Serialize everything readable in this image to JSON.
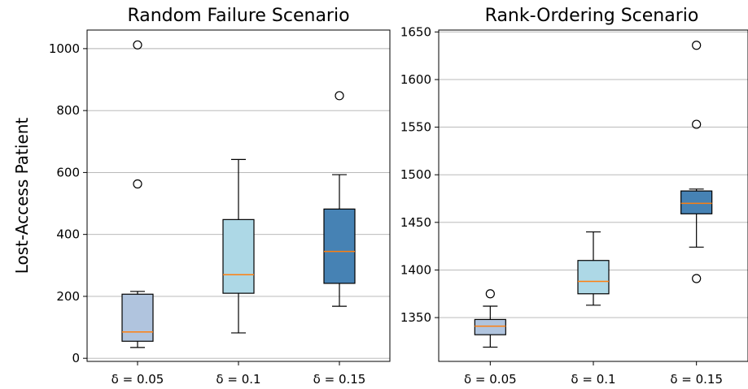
{
  "chart_data": [
    {
      "type": "box",
      "title": "Random Failure Scenario",
      "ylabel": "Lost-Access Patient",
      "xlabel": "",
      "categories": [
        "δ = 0.05",
        "δ = 0.1",
        "δ = 0.15"
      ],
      "ylim": [
        -10,
        1060
      ],
      "yticks": [
        0,
        200,
        400,
        600,
        800,
        1000
      ],
      "grid": "y",
      "boxes": [
        {
          "category": "δ = 0.05",
          "whisker_low": 35,
          "q1": 55,
          "median": 85,
          "q3": 207,
          "whisker_high": 216,
          "outliers": [
            563,
            1012
          ],
          "color": "#b0c4de"
        },
        {
          "category": "δ = 0.1",
          "whisker_low": 82,
          "q1": 210,
          "median": 270,
          "q3": 448,
          "whisker_high": 642,
          "outliers": [],
          "color": "#add8e6"
        },
        {
          "category": "δ = 0.15",
          "whisker_low": 168,
          "q1": 242,
          "median": 345,
          "q3": 482,
          "whisker_high": 593,
          "outliers": [
            848
          ],
          "color": "#4682b4"
        }
      ]
    },
    {
      "type": "box",
      "title": "Rank-Ordering Scenario",
      "ylabel": "",
      "xlabel": "",
      "categories": [
        "δ = 0.05",
        "δ = 0.1",
        "δ = 0.15"
      ],
      "ylim": [
        1304,
        1652
      ],
      "yticks": [
        1350,
        1400,
        1450,
        1500,
        1550,
        1600,
        1650
      ],
      "grid": "y",
      "boxes": [
        {
          "category": "δ = 0.05",
          "whisker_low": 1319,
          "q1": 1332,
          "median": 1341,
          "q3": 1348,
          "whisker_high": 1362,
          "outliers": [
            1375
          ],
          "color": "#b0c4de"
        },
        {
          "category": "δ = 0.1",
          "whisker_low": 1363,
          "q1": 1375,
          "median": 1388,
          "q3": 1410,
          "whisker_high": 1440,
          "outliers": [],
          "color": "#add8e6"
        },
        {
          "category": "δ = 0.15",
          "whisker_low": 1424,
          "q1": 1459,
          "median": 1470,
          "q3": 1483,
          "whisker_high": 1485,
          "outliers": [
            1391,
            1553,
            1636
          ],
          "color": "#4682b4"
        }
      ]
    }
  ]
}
